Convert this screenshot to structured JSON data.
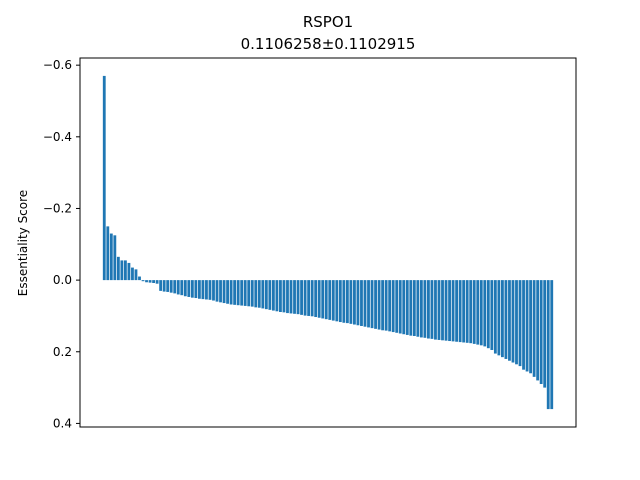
{
  "chart_data": {
    "type": "bar",
    "title": "RSPO1",
    "subtitle": "0.1106258±0.1102915",
    "xlabel": "",
    "ylabel": "Essentiality Score",
    "y_inverted": true,
    "ylim": [
      0.41,
      -0.62
    ],
    "yticks": [
      -0.6,
      -0.4,
      -0.2,
      0.0,
      0.2,
      0.4
    ],
    "ytick_labels": [
      "−0.6",
      "−0.4",
      "−0.2",
      "0.0",
      "0.2",
      "0.4"
    ],
    "bar_color": "#1f77b4",
    "grid": false,
    "values": [
      -0.57,
      -0.15,
      -0.13,
      -0.125,
      -0.065,
      -0.055,
      -0.055,
      -0.048,
      -0.035,
      -0.03,
      -0.01,
      0.003,
      0.006,
      0.007,
      0.008,
      0.01,
      0.03,
      0.032,
      0.033,
      0.035,
      0.037,
      0.04,
      0.042,
      0.045,
      0.047,
      0.049,
      0.05,
      0.052,
      0.053,
      0.054,
      0.055,
      0.057,
      0.06,
      0.062,
      0.064,
      0.066,
      0.068,
      0.069,
      0.07,
      0.071,
      0.072,
      0.073,
      0.074,
      0.076,
      0.077,
      0.079,
      0.081,
      0.083,
      0.085,
      0.087,
      0.089,
      0.09,
      0.092,
      0.093,
      0.094,
      0.095,
      0.097,
      0.099,
      0.1,
      0.101,
      0.103,
      0.105,
      0.107,
      0.109,
      0.111,
      0.113,
      0.115,
      0.117,
      0.119,
      0.12,
      0.122,
      0.124,
      0.126,
      0.128,
      0.13,
      0.132,
      0.134,
      0.136,
      0.138,
      0.14,
      0.141,
      0.143,
      0.145,
      0.147,
      0.149,
      0.151,
      0.153,
      0.155,
      0.156,
      0.158,
      0.16,
      0.161,
      0.163,
      0.164,
      0.166,
      0.167,
      0.168,
      0.169,
      0.17,
      0.171,
      0.172,
      0.173,
      0.174,
      0.175,
      0.176,
      0.178,
      0.18,
      0.182,
      0.185,
      0.19,
      0.195,
      0.205,
      0.21,
      0.215,
      0.22,
      0.225,
      0.23,
      0.235,
      0.24,
      0.25,
      0.255,
      0.26,
      0.27,
      0.28,
      0.29,
      0.3,
      0.36,
      0.36
    ]
  }
}
